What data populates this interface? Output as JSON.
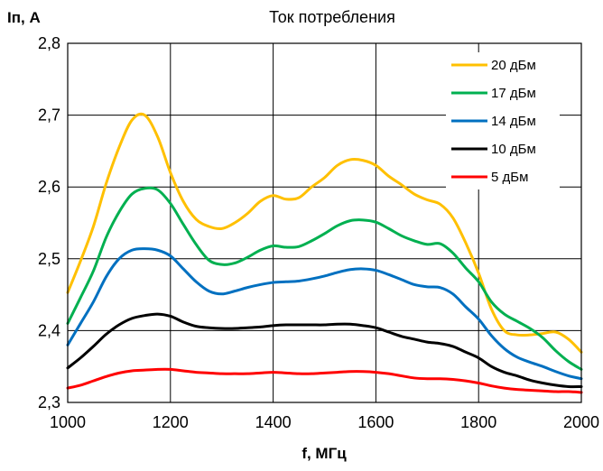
{
  "chart_data": {
    "type": "line",
    "title": "Ток потребления",
    "xlabel": "f, МГц",
    "ylabel": "Iп, А",
    "xlim": [
      1000,
      2000
    ],
    "ylim": [
      2.3,
      2.8
    ],
    "x_ticks": [
      "1000",
      "1200",
      "1400",
      "1600",
      "1800",
      "2000"
    ],
    "y_ticks": [
      "2,3",
      "2,4",
      "2,5",
      "2,6",
      "2,7",
      "2,8"
    ],
    "grid": true,
    "legend_position": "top-right",
    "x": [
      1000,
      1025,
      1050,
      1075,
      1100,
      1125,
      1150,
      1175,
      1200,
      1225,
      1250,
      1275,
      1300,
      1325,
      1350,
      1375,
      1400,
      1425,
      1450,
      1475,
      1500,
      1525,
      1550,
      1575,
      1600,
      1625,
      1650,
      1675,
      1700,
      1725,
      1750,
      1775,
      1800,
      1825,
      1850,
      1875,
      1900,
      1925,
      1950,
      1975,
      2000
    ],
    "series": [
      {
        "name": "20 дБм",
        "color": "#ffc000",
        "values": [
          2.453,
          2.497,
          2.545,
          2.605,
          2.655,
          2.693,
          2.7,
          2.67,
          2.62,
          2.58,
          2.555,
          2.545,
          2.542,
          2.55,
          2.563,
          2.58,
          2.588,
          2.583,
          2.585,
          2.6,
          2.613,
          2.63,
          2.638,
          2.637,
          2.63,
          2.615,
          2.603,
          2.59,
          2.582,
          2.576,
          2.557,
          2.522,
          2.48,
          2.43,
          2.4,
          2.394,
          2.394,
          2.396,
          2.398,
          2.388,
          2.37
        ]
      },
      {
        "name": "17 дБм",
        "color": "#00b050",
        "values": [
          2.41,
          2.446,
          2.483,
          2.53,
          2.565,
          2.59,
          2.598,
          2.596,
          2.577,
          2.548,
          2.52,
          2.498,
          2.492,
          2.494,
          2.502,
          2.512,
          2.518,
          2.516,
          2.517,
          2.525,
          2.535,
          2.546,
          2.553,
          2.554,
          2.551,
          2.542,
          2.532,
          2.525,
          2.52,
          2.521,
          2.508,
          2.487,
          2.468,
          2.44,
          2.423,
          2.413,
          2.403,
          2.39,
          2.372,
          2.357,
          2.346
        ]
      },
      {
        "name": "14 дБм",
        "color": "#0070c0",
        "values": [
          2.38,
          2.41,
          2.44,
          2.475,
          2.5,
          2.512,
          2.514,
          2.512,
          2.504,
          2.486,
          2.468,
          2.455,
          2.451,
          2.455,
          2.46,
          2.464,
          2.467,
          2.468,
          2.469,
          2.472,
          2.476,
          2.481,
          2.485,
          2.486,
          2.484,
          2.478,
          2.471,
          2.464,
          2.461,
          2.46,
          2.451,
          2.433,
          2.416,
          2.393,
          2.375,
          2.363,
          2.356,
          2.35,
          2.343,
          2.337,
          2.333
        ]
      },
      {
        "name": "10 дБм",
        "color": "#000000",
        "values": [
          2.348,
          2.362,
          2.378,
          2.395,
          2.408,
          2.417,
          2.421,
          2.423,
          2.42,
          2.412,
          2.406,
          2.404,
          2.403,
          2.403,
          2.404,
          2.405,
          2.407,
          2.408,
          2.408,
          2.408,
          2.408,
          2.409,
          2.409,
          2.407,
          2.404,
          2.398,
          2.392,
          2.388,
          2.384,
          2.382,
          2.378,
          2.37,
          2.362,
          2.35,
          2.342,
          2.337,
          2.331,
          2.327,
          2.324,
          2.322,
          2.322
        ]
      },
      {
        "name": "5 дБм",
        "color": "#ff0000",
        "values": [
          2.32,
          2.324,
          2.33,
          2.336,
          2.341,
          2.344,
          2.345,
          2.346,
          2.346,
          2.344,
          2.342,
          2.341,
          2.34,
          2.34,
          2.34,
          2.341,
          2.342,
          2.341,
          2.34,
          2.34,
          2.341,
          2.342,
          2.343,
          2.343,
          2.342,
          2.34,
          2.337,
          2.334,
          2.333,
          2.333,
          2.332,
          2.33,
          2.327,
          2.323,
          2.32,
          2.318,
          2.317,
          2.316,
          2.315,
          2.315,
          2.314
        ]
      }
    ]
  }
}
